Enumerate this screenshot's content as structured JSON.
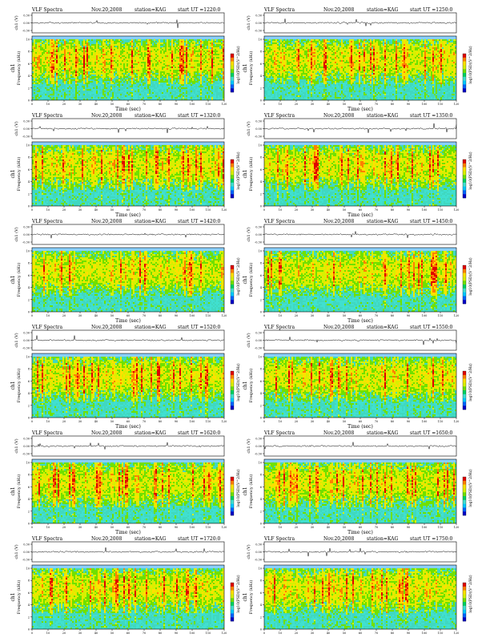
{
  "common": {
    "title_prefix": "VLF Spectra",
    "date": "Nov.20,2008",
    "station": "station=KAG",
    "start_prefix": "start  UT  =",
    "ch_label": "ch1 (V)",
    "ch_ticks": [
      "0.30",
      "0.00",
      "-0.30"
    ],
    "panel_label": "ch1",
    "freq_label": "Frequency  (kHz)",
    "freq_ticks": [
      "0",
      "2",
      "4",
      "6",
      "8",
      "10"
    ],
    "time_label": "Time  (sec)",
    "time_ticks": [
      "0",
      "10",
      "20",
      "30",
      "40",
      "50",
      "60",
      "70",
      "80",
      "90",
      "100",
      "110",
      "120"
    ],
    "cbar_label": "log10(PSD)(V^2/Hz)",
    "colors": {
      "spectrum": [
        "#0000c8",
        "#0064ff",
        "#00c8ff",
        "#40e0d0",
        "#00d060",
        "#70e000",
        "#d8f000",
        "#ffe000",
        "#ff8000",
        "#e00000"
      ]
    }
  },
  "chart_data": [
    {
      "type": "heatmap",
      "start_ut": "1220:0",
      "xlabel": "Time (sec)",
      "ylabel": "Frequency (kHz)",
      "xlim": [
        0,
        120
      ],
      "ylim": [
        0,
        10
      ]
    },
    {
      "type": "heatmap",
      "start_ut": "1250:0",
      "xlabel": "Time (sec)",
      "ylabel": "Frequency (kHz)",
      "xlim": [
        0,
        120
      ],
      "ylim": [
        0,
        10
      ]
    },
    {
      "type": "heatmap",
      "start_ut": "1320:0",
      "xlabel": "Time (sec)",
      "ylabel": "Frequency (kHz)",
      "xlim": [
        0,
        120
      ],
      "ylim": [
        0,
        10
      ]
    },
    {
      "type": "heatmap",
      "start_ut": "1350:0",
      "xlabel": "Time (sec)",
      "ylabel": "Frequency (kHz)",
      "xlim": [
        0,
        120
      ],
      "ylim": [
        0,
        10
      ]
    },
    {
      "type": "heatmap",
      "start_ut": "1420:0",
      "xlabel": "Time (sec)",
      "ylabel": "Frequency (kHz)",
      "xlim": [
        0,
        120
      ],
      "ylim": [
        0,
        10
      ]
    },
    {
      "type": "heatmap",
      "start_ut": "1450:0",
      "xlabel": "Time (sec)",
      "ylabel": "Frequency (kHz)",
      "xlim": [
        0,
        120
      ],
      "ylim": [
        0,
        10
      ]
    },
    {
      "type": "heatmap",
      "start_ut": "1520:0",
      "xlabel": "Time (sec)",
      "ylabel": "Frequency (kHz)",
      "xlim": [
        0,
        120
      ],
      "ylim": [
        0,
        10
      ]
    },
    {
      "type": "heatmap",
      "start_ut": "1550:0",
      "xlabel": "Time (sec)",
      "ylabel": "Frequency (kHz)",
      "xlim": [
        0,
        120
      ],
      "ylim": [
        0,
        10
      ]
    },
    {
      "type": "heatmap",
      "start_ut": "1620:0",
      "xlabel": "Time (sec)",
      "ylabel": "Frequency (kHz)",
      "xlim": [
        0,
        120
      ],
      "ylim": [
        0,
        10
      ]
    },
    {
      "type": "heatmap",
      "start_ut": "1650:0",
      "xlabel": "Time (sec)",
      "ylabel": "Frequency (kHz)",
      "xlim": [
        0,
        120
      ],
      "ylim": [
        0,
        10
      ]
    },
    {
      "type": "heatmap",
      "start_ut": "1720:0",
      "xlabel": "Time (sec)",
      "ylabel": "Frequency (kHz)",
      "xlim": [
        0,
        120
      ],
      "ylim": [
        0,
        10
      ]
    },
    {
      "type": "heatmap",
      "start_ut": "1750:0",
      "xlabel": "Time (sec)",
      "ylabel": "Frequency (kHz)",
      "xlim": [
        0,
        120
      ],
      "ylim": [
        0,
        10
      ]
    }
  ]
}
